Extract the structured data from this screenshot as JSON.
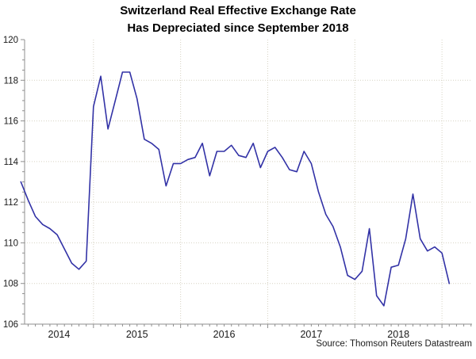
{
  "title_line1": "Switzerland Real Effective Exchange Rate",
  "title_line2": "Has Depreciated since September 2018",
  "source_credit": "Source: Thomson Reuters Datastream",
  "colors": {
    "line": "#3232a6",
    "grid": "#d6d2c2",
    "axis": "#8f8f8f",
    "text": "#1a1a1a"
  },
  "chart_data": {
    "type": "line",
    "title": "Switzerland Real Effective Exchange Rate Has Depreciated since September 2018",
    "xlabel": "",
    "ylabel": "",
    "ylim": [
      106,
      120
    ],
    "y_major_step": 2,
    "y_minor_step": 0.5,
    "grid": true,
    "legend_position": "none",
    "x_year_labels": [
      "2014",
      "2015",
      "2016",
      "2017",
      "2018"
    ],
    "x": [
      "2014-03",
      "2014-04",
      "2014-05",
      "2014-06",
      "2014-07",
      "2014-08",
      "2014-09",
      "2014-10",
      "2014-11",
      "2014-12",
      "2015-01",
      "2015-02",
      "2015-03",
      "2015-04",
      "2015-05",
      "2015-06",
      "2015-07",
      "2015-08",
      "2015-09",
      "2015-10",
      "2015-11",
      "2015-12",
      "2016-01",
      "2016-02",
      "2016-03",
      "2016-04",
      "2016-05",
      "2016-06",
      "2016-07",
      "2016-08",
      "2016-09",
      "2016-10",
      "2016-11",
      "2016-12",
      "2017-01",
      "2017-02",
      "2017-03",
      "2017-04",
      "2017-05",
      "2017-06",
      "2017-07",
      "2017-08",
      "2017-09",
      "2017-10",
      "2017-11",
      "2017-12",
      "2018-01",
      "2018-02",
      "2018-03",
      "2018-04",
      "2018-05",
      "2018-06",
      "2018-07",
      "2018-08",
      "2018-09",
      "2018-10",
      "2018-11",
      "2018-12",
      "2019-01",
      "2019-02"
    ],
    "series": [
      {
        "name": "Switzerland real effective exchange rate",
        "values": [
          113.0,
          112.1,
          111.3,
          110.9,
          110.7,
          110.4,
          109.7,
          109.0,
          108.7,
          109.1,
          116.7,
          118.2,
          115.6,
          117.0,
          118.4,
          118.4,
          117.1,
          115.1,
          114.9,
          114.6,
          112.8,
          113.9,
          113.9,
          114.1,
          114.2,
          114.9,
          113.3,
          114.5,
          114.5,
          114.8,
          114.3,
          114.2,
          114.9,
          113.7,
          114.5,
          114.7,
          114.2,
          113.6,
          113.5,
          114.5,
          113.9,
          112.5,
          111.4,
          110.8,
          109.8,
          108.4,
          108.2,
          108.6,
          110.7,
          107.4,
          106.9,
          108.8,
          108.9,
          110.2,
          112.4,
          110.2,
          109.6,
          109.8,
          109.5,
          108.0
        ]
      }
    ]
  }
}
